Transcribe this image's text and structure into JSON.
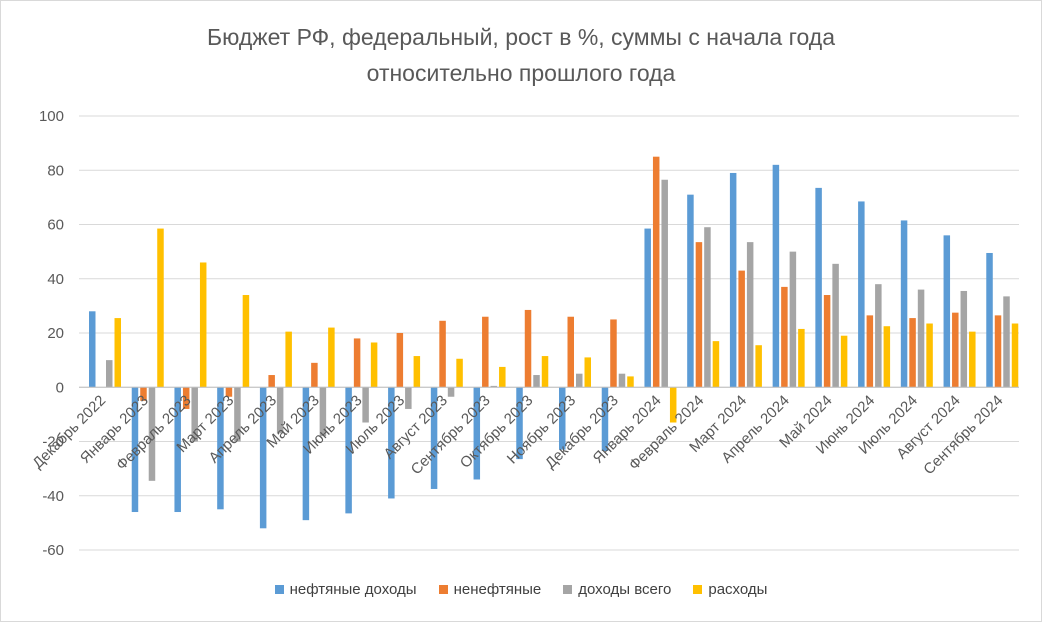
{
  "chart_data": {
    "type": "bar",
    "title_line1": "Бюджет РФ, федеральный, рост в %, суммы с начала года",
    "title_line2": "относительно прошлого года",
    "xlabel": "",
    "ylabel": "",
    "ylim": [
      -60,
      100
    ],
    "yticks": [
      -60,
      -40,
      -20,
      0,
      20,
      40,
      60,
      80,
      100
    ],
    "grid": true,
    "legend_position": "bottom",
    "categories": [
      "Декабрь 2022",
      "Январь 2023",
      "Февраль 2023",
      "Март 2023",
      "Апрель 2023",
      "Май 2023",
      "Июнь 2023",
      "Июль 2023",
      "Август 2023",
      "Сентябрь 2023",
      "Октябрь 2023",
      "Ноябрь 2023",
      "Декабрь 2023",
      "Январь 2024",
      "Февраль 2024",
      "Март 2024",
      "Апрель 2024",
      "Май 2024",
      "Июнь 2024",
      "Июль 2024",
      "Август 2024",
      "Сентябрь 2024"
    ],
    "series": [
      {
        "name": "нефтяные доходы",
        "color": "#5b9bd5",
        "values": [
          28,
          -46,
          -46,
          -45,
          -52,
          -49,
          -46.5,
          -41,
          -37.5,
          -34,
          -26.5,
          -23,
          -23.5,
          58.5,
          71,
          79,
          82,
          73.5,
          68.5,
          61.5,
          56,
          49.5
        ]
      },
      {
        "name": "ненефтяные",
        "color": "#ed7d31",
        "values": [
          0,
          -5,
          -8,
          -3.5,
          4.5,
          9,
          18,
          20,
          24.5,
          26,
          28.5,
          26,
          25,
          85,
          53.5,
          43,
          37,
          34,
          26.5,
          25.5,
          27.5,
          26.5
        ]
      },
      {
        "name": "доходы всего",
        "color": "#a5a5a5",
        "values": [
          10,
          -34.5,
          -20,
          -20,
          -17,
          -18,
          -13,
          -8,
          -3.5,
          0.5,
          4.5,
          5,
          5,
          76.5,
          59,
          53.5,
          50,
          45.5,
          38,
          36,
          35.5,
          33.5
        ]
      },
      {
        "name": "расходы",
        "color": "#ffc000",
        "values": [
          25.5,
          58.5,
          46,
          34,
          20.5,
          22,
          16.5,
          11.5,
          10.5,
          7.5,
          11.5,
          11,
          4,
          -13,
          17,
          15.5,
          21.5,
          19,
          22.5,
          23.5,
          20.5,
          23.5
        ]
      }
    ]
  }
}
